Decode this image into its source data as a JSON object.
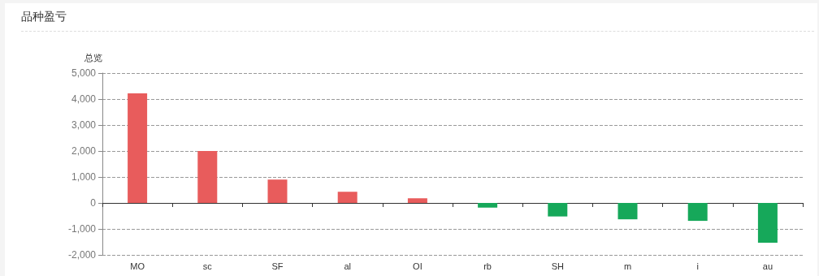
{
  "chart_data": {
    "type": "bar",
    "title": "品种盈亏",
    "ylabel": "总览",
    "categories": [
      "MO",
      "sc",
      "SF",
      "al",
      "OI",
      "rb",
      "SH",
      "m",
      "i",
      "au"
    ],
    "values": [
      4220,
      2000,
      900,
      430,
      180,
      -180,
      -520,
      -630,
      -690,
      -1530
    ],
    "colors": [
      "#e85c5c",
      "#e85c5c",
      "#e85c5c",
      "#e85c5c",
      "#e85c5c",
      "#16a85a",
      "#16a85a",
      "#16a85a",
      "#16a85a",
      "#16a85a"
    ],
    "ylim": [
      -2000,
      5000
    ],
    "yticks": [
      {
        "value": -2000,
        "label": "-2,000"
      },
      {
        "value": -1000,
        "label": "-1,000"
      },
      0,
      {
        "value": 1000,
        "label": "1,000"
      },
      {
        "value": 2000,
        "label": "2,000"
      },
      {
        "value": 3000,
        "label": "3,000"
      },
      {
        "value": 4000,
        "label": "4,000"
      },
      {
        "value": 5000,
        "label": "5,000"
      }
    ],
    "grid": "y"
  }
}
